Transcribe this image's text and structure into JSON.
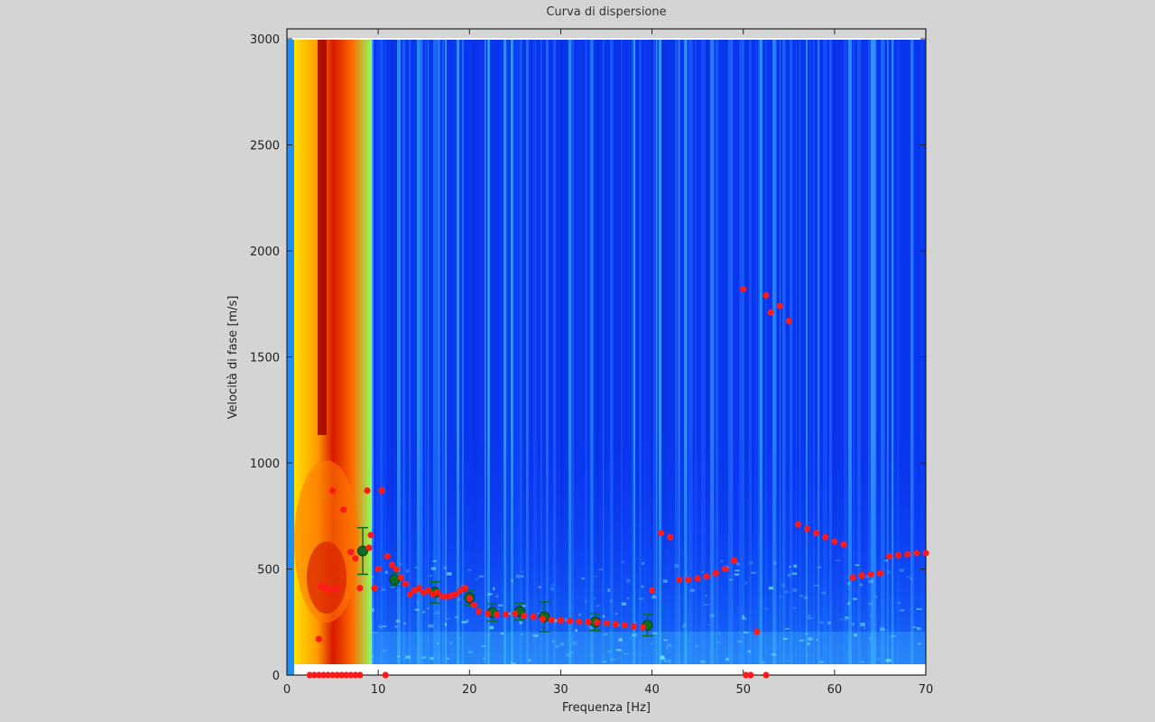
{
  "chart_data": {
    "type": "heatmap",
    "title": "Curva di dispersione",
    "xlabel": "Frequenza [Hz]",
    "ylabel": "Velocità di fase  [m/s]",
    "xlim": [
      0,
      70
    ],
    "ylim": [
      0,
      3000
    ],
    "x_ticks": [
      "0",
      "10",
      "20",
      "30",
      "40",
      "50",
      "60",
      "70"
    ],
    "y_ticks": [
      "0",
      "500",
      "1000",
      "1500",
      "2000",
      "2500",
      "3000"
    ],
    "colormap": "jet",
    "series": [
      {
        "kind": "scatter",
        "color": "#ff1a1a",
        "points": [
          [
            3.5,
            170
          ],
          [
            5,
            870
          ],
          [
            6.2,
            780
          ],
          [
            7,
            580
          ],
          [
            7.5,
            550
          ],
          [
            8,
            410
          ],
          [
            8.8,
            870
          ],
          [
            9,
            600
          ],
          [
            9.2,
            660
          ],
          [
            9.6,
            410
          ],
          [
            10,
            500
          ],
          [
            10.4,
            870
          ],
          [
            11,
            560
          ],
          [
            11.5,
            520
          ],
          [
            12,
            500
          ],
          [
            12.5,
            460
          ],
          [
            13,
            430
          ],
          [
            13.5,
            380
          ],
          [
            14,
            400
          ],
          [
            14.5,
            410
          ],
          [
            15,
            390
          ],
          [
            15.5,
            400
          ],
          [
            16,
            380
          ],
          [
            16.5,
            390
          ],
          [
            17,
            370
          ],
          [
            17.5,
            370
          ],
          [
            18,
            375
          ],
          [
            18.5,
            380
          ],
          [
            19,
            400
          ],
          [
            19.5,
            410
          ],
          [
            20,
            360
          ],
          [
            20.5,
            330
          ],
          [
            21,
            300
          ],
          [
            22,
            290
          ],
          [
            23,
            285
          ],
          [
            24,
            285
          ],
          [
            25,
            290
          ],
          [
            26,
            280
          ],
          [
            27,
            275
          ],
          [
            28,
            265
          ],
          [
            29,
            260
          ],
          [
            30,
            258
          ],
          [
            31,
            255
          ],
          [
            32,
            252
          ],
          [
            33,
            250
          ],
          [
            34,
            248
          ],
          [
            35,
            245
          ],
          [
            36,
            240
          ],
          [
            37,
            235
          ],
          [
            38,
            230
          ],
          [
            39,
            225
          ],
          [
            40,
            400
          ],
          [
            41,
            670
          ],
          [
            42,
            650
          ],
          [
            43,
            450
          ],
          [
            44,
            450
          ],
          [
            45,
            455
          ],
          [
            46,
            465
          ],
          [
            47,
            480
          ],
          [
            48,
            500
          ],
          [
            49,
            540
          ],
          [
            50,
            1820
          ],
          [
            51.5,
            205
          ],
          [
            52.5,
            1790
          ],
          [
            53,
            1710
          ],
          [
            54,
            1740
          ],
          [
            55,
            1670
          ],
          [
            56,
            710
          ],
          [
            57,
            690
          ],
          [
            58,
            670
          ],
          [
            59,
            650
          ],
          [
            60,
            630
          ],
          [
            61,
            615
          ],
          [
            62,
            460
          ],
          [
            63,
            470
          ],
          [
            64,
            475
          ],
          [
            65,
            480
          ],
          [
            66,
            560
          ],
          [
            67,
            565
          ],
          [
            68,
            570
          ],
          [
            69,
            575
          ],
          [
            70,
            575
          ],
          [
            3.8,
            420
          ],
          [
            4.2,
            410
          ],
          [
            4.8,
            400
          ],
          [
            5.5,
            410
          ],
          [
            2.5,
            0
          ],
          [
            3,
            0
          ],
          [
            3.5,
            0
          ],
          [
            4,
            0
          ],
          [
            4.5,
            0
          ],
          [
            5,
            0
          ],
          [
            5.5,
            0
          ],
          [
            6,
            0
          ],
          [
            6.5,
            0
          ],
          [
            7,
            0
          ],
          [
            7.5,
            0
          ],
          [
            8,
            0
          ],
          [
            10.8,
            0
          ],
          [
            50.3,
            0
          ],
          [
            50.8,
            0
          ],
          [
            52.5,
            0
          ]
        ]
      },
      {
        "kind": "errorbar",
        "color": "#0a6e1e",
        "points": [
          {
            "x": 8.3,
            "y": 585,
            "err": 110
          },
          {
            "x": 11.8,
            "y": 450,
            "err": 30
          },
          {
            "x": 16.2,
            "y": 390,
            "err": 50
          },
          {
            "x": 20,
            "y": 365,
            "err": 35
          },
          {
            "x": 22.5,
            "y": 295,
            "err": 40
          },
          {
            "x": 25.5,
            "y": 300,
            "err": 40
          },
          {
            "x": 28.2,
            "y": 275,
            "err": 70
          },
          {
            "x": 33.8,
            "y": 250,
            "err": 40
          },
          {
            "x": 39.5,
            "y": 235,
            "err": 50
          }
        ]
      }
    ]
  }
}
